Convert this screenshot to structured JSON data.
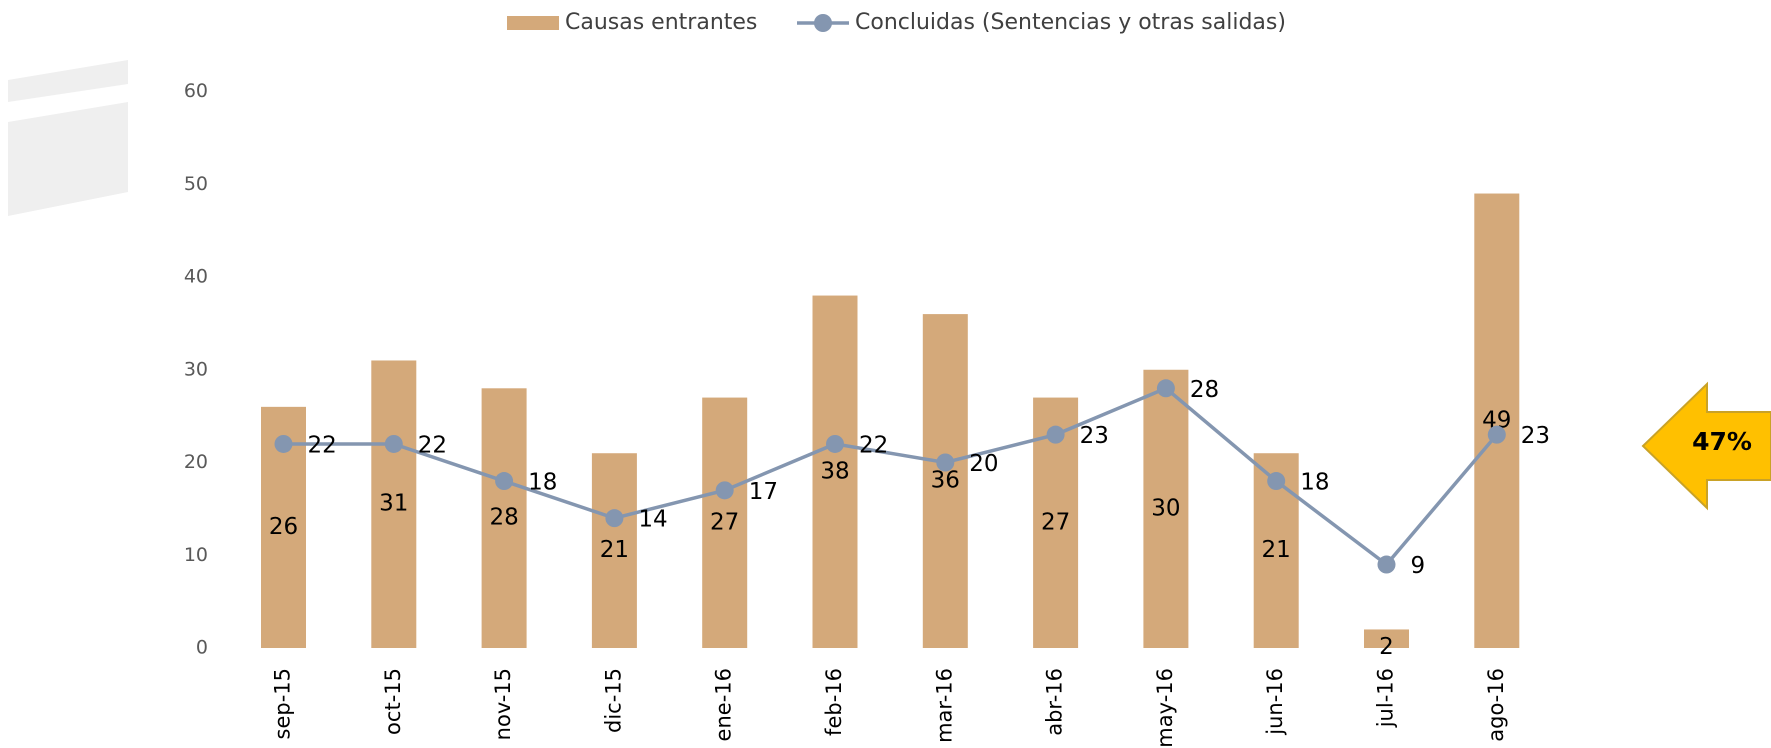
{
  "chart_data": {
    "type": "bar_line",
    "categories": [
      "sep-15",
      "oct-15",
      "nov-15",
      "dic-15",
      "ene-16",
      "feb-16",
      "mar-16",
      "abr-16",
      "may-16",
      "jun-16",
      "jul-16",
      "ago-16"
    ],
    "series": [
      {
        "name": "Causas entrantes",
        "type": "bar",
        "color": "#d4a97a",
        "values": [
          26,
          31,
          28,
          21,
          27,
          38,
          36,
          27,
          30,
          21,
          2,
          49
        ]
      },
      {
        "name": "Concluidas (Sentencias y otras salidas)",
        "type": "line",
        "color": "#8496b0",
        "values": [
          22,
          22,
          18,
          14,
          17,
          22,
          20,
          23,
          28,
          18,
          9,
          23
        ]
      }
    ],
    "ylim": [
      0,
      60
    ],
    "yticks": [
      0,
      10,
      20,
      30,
      40,
      50,
      60
    ],
    "grid": false,
    "legend": "top",
    "annotation": "47%"
  }
}
